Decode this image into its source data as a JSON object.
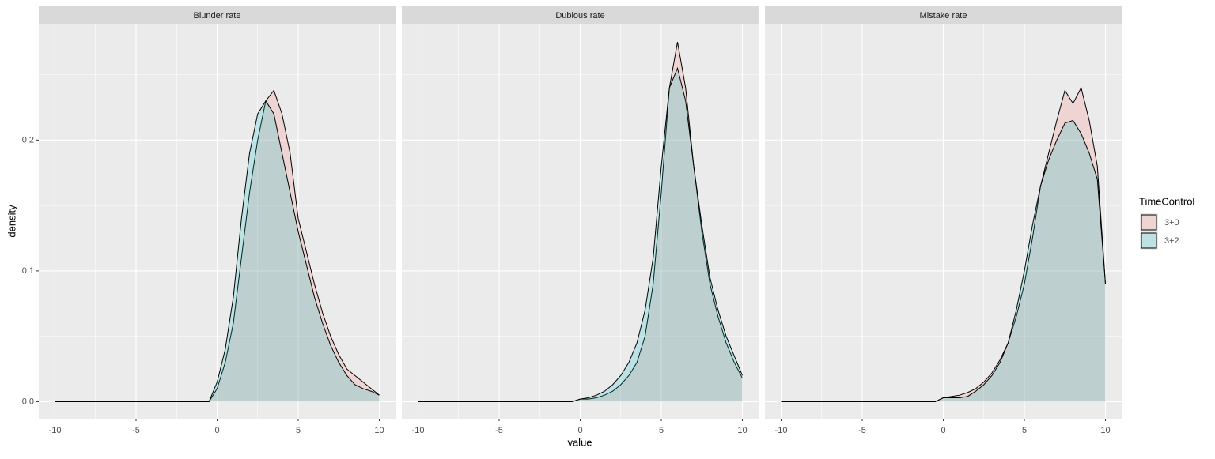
{
  "axis_labels": {
    "x": "value",
    "y": "density"
  },
  "legend": {
    "title": "TimeControl"
  },
  "chart_data": [
    {
      "type": "area",
      "title": "Blunder rate",
      "x": [
        -10,
        -9.5,
        -9,
        -8.5,
        -8,
        -7.5,
        -7,
        -6.5,
        -6,
        -5.5,
        -5,
        -4.5,
        -4,
        -3.5,
        -3,
        -2.5,
        -2,
        -1.5,
        -1,
        -0.5,
        0,
        0.5,
        1,
        1.5,
        2,
        2.5,
        3,
        3.5,
        4,
        4.5,
        5,
        5.5,
        6,
        6.5,
        7,
        7.5,
        8,
        8.5,
        9,
        9.5,
        10
      ],
      "series": [
        {
          "name": "3+0",
          "color": "#F8766D",
          "values": [
            0,
            0,
            0,
            0,
            0,
            0,
            0,
            0,
            0,
            0,
            0,
            0,
            0,
            0,
            0,
            0,
            0,
            0,
            0,
            0,
            0.01,
            0.03,
            0.06,
            0.11,
            0.16,
            0.2,
            0.23,
            0.238,
            0.22,
            0.19,
            0.14,
            0.115,
            0.09,
            0.068,
            0.05,
            0.036,
            0.025,
            0.02,
            0.015,
            0.01,
            0.005
          ]
        },
        {
          "name": "3+2",
          "color": "#00BFC4",
          "values": [
            0,
            0,
            0,
            0,
            0,
            0,
            0,
            0,
            0,
            0,
            0,
            0,
            0,
            0,
            0,
            0,
            0,
            0,
            0,
            0,
            0.015,
            0.04,
            0.08,
            0.14,
            0.19,
            0.22,
            0.23,
            0.22,
            0.19,
            0.16,
            0.13,
            0.105,
            0.08,
            0.06,
            0.043,
            0.03,
            0.02,
            0.013,
            0.01,
            0.008,
            0.005
          ]
        }
      ],
      "fill_opacity": 0.2,
      "xlim": [
        -11,
        11
      ],
      "ylim": [
        -0.013,
        0.289
      ],
      "xticks": [
        -10,
        -5,
        0,
        5,
        10
      ],
      "yticks": [
        {
          "value": 0,
          "label": "0.0"
        },
        0.1,
        0.2
      ],
      "minor_xticks": [
        -7.5,
        -2.5,
        2.5,
        7.5
      ],
      "minor_yticks": [
        0.05,
        0.15,
        0.25
      ],
      "grid": true
    },
    {
      "type": "area",
      "title": "Dubious rate",
      "x": [
        -10,
        -9.5,
        -9,
        -8.5,
        -8,
        -7.5,
        -7,
        -6.5,
        -6,
        -5.5,
        -5,
        -4.5,
        -4,
        -3.5,
        -3,
        -2.5,
        -2,
        -1.5,
        -1,
        -0.5,
        0,
        0.5,
        1,
        1.5,
        2,
        2.5,
        3,
        3.5,
        4,
        4.5,
        5,
        5.5,
        6,
        6.5,
        7,
        7.5,
        8,
        8.5,
        9,
        9.5,
        10
      ],
      "series": [
        {
          "name": "3+0",
          "color": "#F8766D",
          "values": [
            0,
            0,
            0,
            0,
            0,
            0,
            0,
            0,
            0,
            0,
            0,
            0,
            0,
            0,
            0,
            0,
            0,
            0,
            0,
            0,
            0.002,
            0.002,
            0.003,
            0.005,
            0.008,
            0.013,
            0.02,
            0.03,
            0.05,
            0.09,
            0.16,
            0.24,
            0.275,
            0.24,
            0.18,
            0.13,
            0.09,
            0.065,
            0.045,
            0.03,
            0.018
          ]
        },
        {
          "name": "3+2",
          "color": "#00BFC4",
          "values": [
            0,
            0,
            0,
            0,
            0,
            0,
            0,
            0,
            0,
            0,
            0,
            0,
            0,
            0,
            0,
            0,
            0,
            0,
            0,
            0,
            0.002,
            0.003,
            0.005,
            0.008,
            0.013,
            0.02,
            0.03,
            0.045,
            0.07,
            0.11,
            0.18,
            0.24,
            0.255,
            0.23,
            0.18,
            0.135,
            0.095,
            0.07,
            0.05,
            0.035,
            0.02
          ]
        }
      ],
      "fill_opacity": 0.2,
      "xlim": [
        -11,
        11
      ],
      "ylim": [
        -0.013,
        0.289
      ],
      "xticks": [
        -10,
        -5,
        0,
        5,
        10
      ],
      "yticks": [
        {
          "value": 0,
          "label": "0.0"
        },
        0.1,
        0.2
      ],
      "minor_xticks": [
        -7.5,
        -2.5,
        2.5,
        7.5
      ],
      "minor_yticks": [
        0.05,
        0.15,
        0.25
      ],
      "grid": true
    },
    {
      "type": "area",
      "title": "Mistake rate",
      "x": [
        -10,
        -9.5,
        -9,
        -8.5,
        -8,
        -7.5,
        -7,
        -6.5,
        -6,
        -5.5,
        -5,
        -4.5,
        -4,
        -3.5,
        -3,
        -2.5,
        -2,
        -1.5,
        -1,
        -0.5,
        0,
        0.5,
        1,
        1.5,
        2,
        2.5,
        3,
        3.5,
        4,
        4.5,
        5,
        5.5,
        6,
        6.5,
        7,
        7.5,
        8,
        8.5,
        9,
        9.5,
        10
      ],
      "series": [
        {
          "name": "3+0",
          "color": "#F8766D",
          "values": [
            0,
            0,
            0,
            0,
            0,
            0,
            0,
            0,
            0,
            0,
            0,
            0,
            0,
            0,
            0,
            0,
            0,
            0,
            0,
            0,
            0.003,
            0.004,
            0.005,
            0.007,
            0.01,
            0.015,
            0.022,
            0.032,
            0.045,
            0.065,
            0.09,
            0.125,
            0.165,
            0.19,
            0.215,
            0.238,
            0.228,
            0.24,
            0.215,
            0.18,
            0.09
          ]
        },
        {
          "name": "3+2",
          "color": "#00BFC4",
          "values": [
            0,
            0,
            0,
            0,
            0,
            0,
            0,
            0,
            0,
            0,
            0,
            0,
            0,
            0,
            0,
            0,
            0,
            0,
            0,
            0,
            0.003,
            0.003,
            0.003,
            0.004,
            0.008,
            0.013,
            0.02,
            0.03,
            0.045,
            0.07,
            0.1,
            0.135,
            0.165,
            0.185,
            0.2,
            0.213,
            0.215,
            0.205,
            0.19,
            0.17,
            0.09
          ]
        }
      ],
      "fill_opacity": 0.2,
      "xlim": [
        -11,
        11
      ],
      "ylim": [
        -0.013,
        0.289
      ],
      "xticks": [
        -10,
        -5,
        0,
        5,
        10
      ],
      "yticks": [
        {
          "value": 0,
          "label": "0.0"
        },
        0.1,
        0.2
      ],
      "minor_xticks": [
        -7.5,
        -2.5,
        2.5,
        7.5
      ],
      "minor_yticks": [
        0.05,
        0.15,
        0.25
      ],
      "grid": true
    }
  ]
}
